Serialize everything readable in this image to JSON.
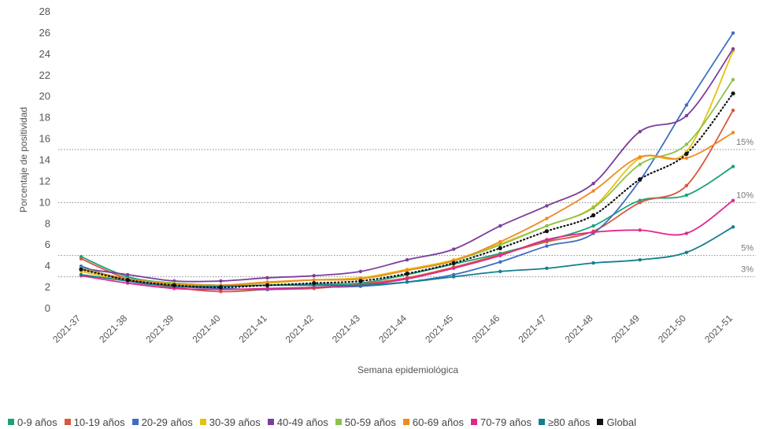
{
  "chart_data": {
    "type": "line",
    "title": "",
    "xlabel": "Semana epidemiológica",
    "ylabel": "Porcentaje de positividad",
    "ylim": [
      0,
      28
    ],
    "yticks": [
      "0",
      "2",
      "4",
      "6",
      "8",
      "10",
      "12",
      "14",
      "16",
      "18",
      "20",
      "22",
      "24",
      "26",
      "28"
    ],
    "categories": [
      "2021-37",
      "2021-38",
      "2021-39",
      "2021-40",
      "2021-41",
      "2021-42",
      "2021-43",
      "2021-44",
      "2021-45",
      "2021-46",
      "2021-47",
      "2021-48",
      "2021-49",
      "2021-50",
      "2021-51"
    ],
    "reference_lines": [
      {
        "value": 15,
        "label": "15%"
      },
      {
        "value": 10,
        "label": "10%"
      },
      {
        "value": 5,
        "label": "5%"
      },
      {
        "value": 3,
        "label": "3%"
      }
    ],
    "legend_position": "bottom",
    "series": [
      {
        "name": "0-9 años",
        "color": "#1aa37a",
        "style": "solid",
        "values": [
          4.9,
          3.0,
          2.4,
          2.2,
          2.2,
          2.3,
          2.4,
          3.2,
          4.2,
          5.2,
          6.4,
          7.8,
          10.2,
          10.7,
          13.4
        ]
      },
      {
        "name": "10-19 años",
        "color": "#d9573f",
        "style": "solid",
        "values": [
          4.7,
          2.8,
          2.0,
          1.6,
          1.8,
          1.9,
          2.3,
          2.9,
          3.9,
          5.1,
          6.3,
          7.3,
          10.0,
          11.6,
          18.7
        ]
      },
      {
        "name": "20-29 años",
        "color": "#3b6fc3",
        "style": "solid",
        "values": [
          4.0,
          2.6,
          2.1,
          1.9,
          1.8,
          2.0,
          2.1,
          2.5,
          3.2,
          4.4,
          5.9,
          7.1,
          12.1,
          19.2,
          26.0
        ]
      },
      {
        "name": "30-39 años",
        "color": "#e8c10f",
        "style": "solid",
        "values": [
          3.5,
          2.6,
          2.2,
          2.2,
          2.4,
          2.7,
          2.9,
          3.7,
          4.6,
          6.1,
          7.8,
          9.6,
          14.2,
          14.8,
          24.3
        ]
      },
      {
        "name": "40-49 años",
        "color": "#7b3f9a",
        "style": "solid",
        "values": [
          3.8,
          3.2,
          2.6,
          2.6,
          2.9,
          3.1,
          3.5,
          4.6,
          5.6,
          7.8,
          9.7,
          11.8,
          16.7,
          18.2,
          24.5
        ]
      },
      {
        "name": "50-59 años",
        "color": "#8cc34a",
        "style": "solid",
        "values": [
          3.8,
          2.8,
          2.4,
          2.2,
          2.5,
          2.7,
          2.8,
          3.6,
          4.5,
          6.0,
          7.8,
          9.5,
          13.6,
          15.5,
          21.6
        ]
      },
      {
        "name": "60-69 años",
        "color": "#ef8a22",
        "style": "solid",
        "values": [
          3.7,
          2.8,
          2.3,
          2.2,
          2.5,
          2.7,
          2.8,
          3.6,
          4.5,
          6.3,
          8.5,
          11.1,
          14.3,
          14.2,
          16.6
        ]
      },
      {
        "name": "70-79 años",
        "color": "#e0288c",
        "style": "solid",
        "values": [
          3.1,
          2.4,
          1.9,
          1.8,
          1.9,
          2.0,
          2.2,
          2.8,
          3.8,
          5.0,
          6.5,
          7.2,
          7.4,
          7.1,
          10.2
        ]
      },
      {
        "name": "≥80 años",
        "color": "#137f8e",
        "style": "solid",
        "values": [
          3.2,
          2.6,
          2.1,
          2.1,
          2.2,
          2.2,
          2.2,
          2.5,
          3.0,
          3.5,
          3.8,
          4.3,
          4.6,
          5.3,
          7.7
        ]
      },
      {
        "name": "Global",
        "color": "#111111",
        "style": "dotted",
        "values": [
          3.7,
          2.7,
          2.2,
          2.0,
          2.2,
          2.4,
          2.6,
          3.3,
          4.3,
          5.7,
          7.3,
          8.8,
          12.2,
          14.6,
          20.3
        ]
      }
    ]
  }
}
